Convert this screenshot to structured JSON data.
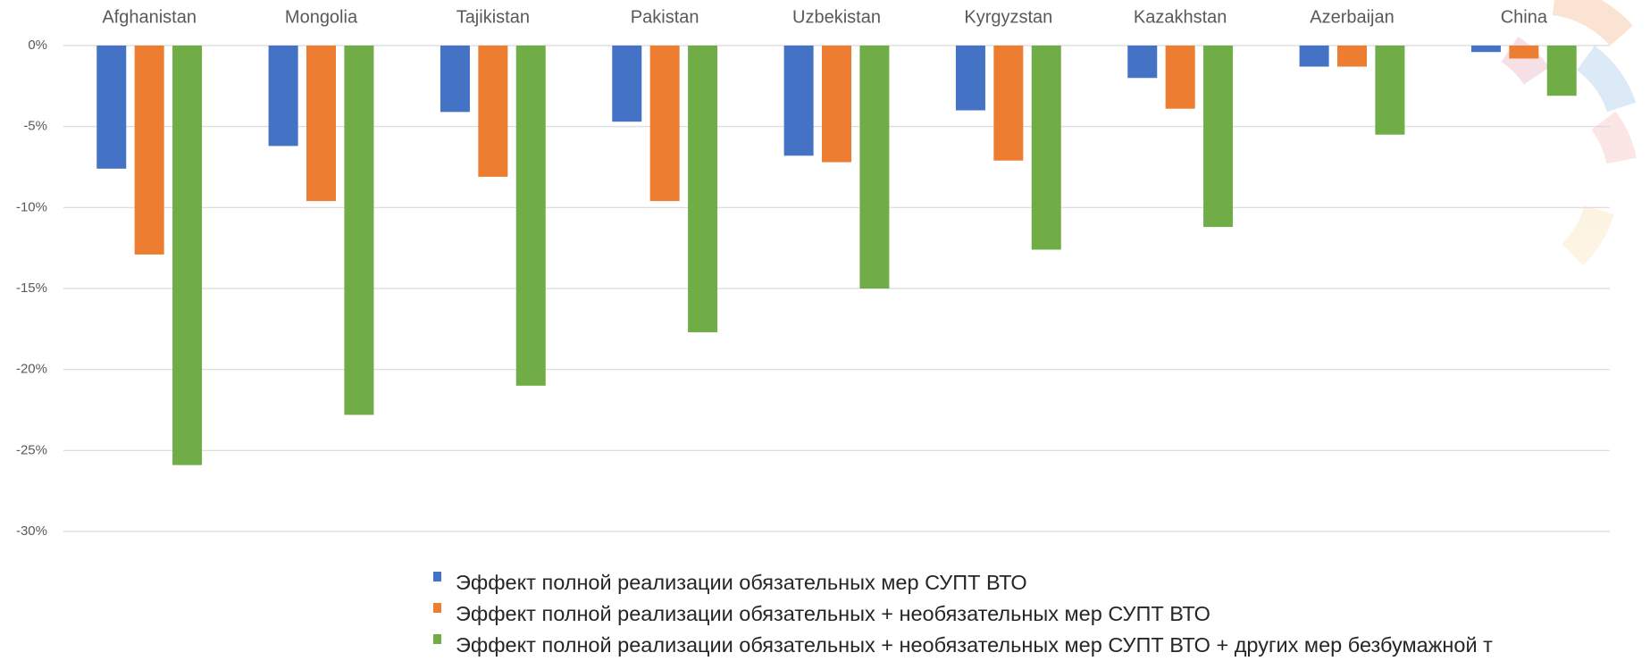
{
  "chart_data": {
    "type": "bar",
    "categories": [
      "Afghanistan",
      "Mongolia",
      "Tajikistan",
      "Pakistan",
      "Uzbekistan",
      "Kyrgyzstan",
      "Kazakhstan",
      "Azerbaijan",
      "China"
    ],
    "series": [
      {
        "name": "Эффект полной реализации обязательных мер СУПТ ВТО",
        "color": "#4472c4",
        "values": [
          -7.6,
          -6.2,
          -4.1,
          -4.7,
          -6.8,
          -4.0,
          -2.0,
          -1.3,
          -0.4
        ]
      },
      {
        "name": "Эффект полной реализации обязательных + необязательных мер СУПТ ВТО",
        "color": "#ed7d31",
        "values": [
          -12.9,
          -9.6,
          -8.1,
          -9.6,
          -7.2,
          -7.1,
          -3.9,
          -1.3,
          -0.8
        ]
      },
      {
        "name": "Эффект полной реализации обязательных + необязательных мер СУПТ ВТО + других мер безбумажной т",
        "color": "#70ad47",
        "values": [
          -25.9,
          -22.8,
          -21.0,
          -17.7,
          -15.0,
          -12.6,
          -11.2,
          -5.5,
          -3.1
        ]
      }
    ],
    "ylim": [
      -30,
      0
    ],
    "yticks": [
      {
        "value": 0,
        "label": "0%"
      },
      {
        "value": -5,
        "label": "-5%"
      },
      {
        "value": -10,
        "label": "-10%"
      },
      {
        "value": -15,
        "label": "-15%"
      },
      {
        "value": -20,
        "label": "-20%"
      },
      {
        "value": -25,
        "label": "-25%"
      },
      {
        "value": -30,
        "label": "-30%"
      }
    ],
    "grid": true
  }
}
